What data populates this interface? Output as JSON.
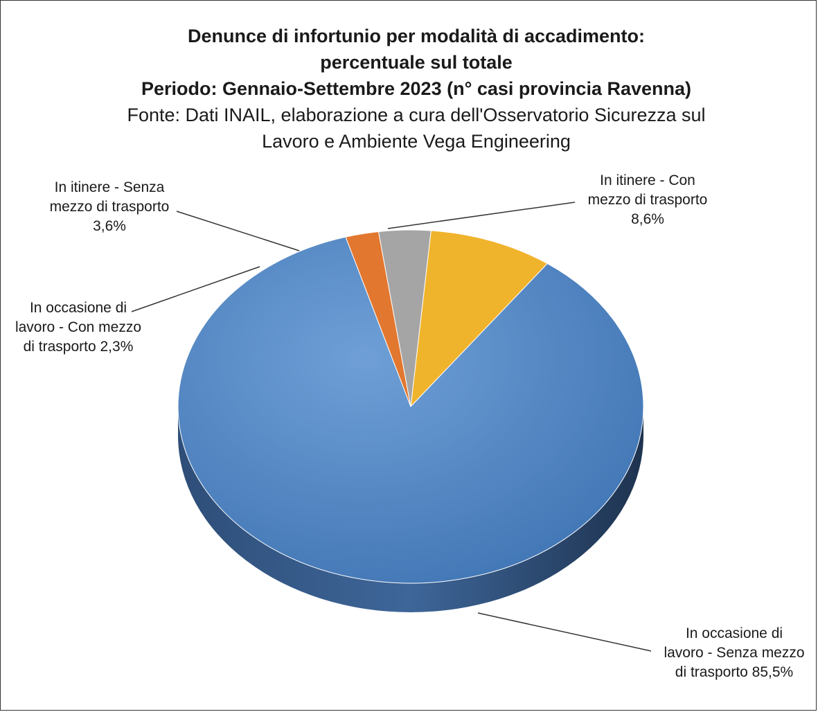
{
  "chart_data": {
    "type": "pie",
    "title_lines": [
      "Denunce di infortunio per modalità di accadimento:",
      "percentuale sul totale",
      "Periodo: Gennaio-Settembre 2023 (n° casi provincia Ravenna)"
    ],
    "subtitle_lines": [
      "Fonte: Dati INAIL, elaborazione a cura dell'Osservatorio Sicurezza sul",
      "Lavoro e Ambiente Vega Engineering"
    ],
    "slices": [
      {
        "name": "In itinere - Con mezzo di trasporto",
        "value": 8.6,
        "color": "#F0B32C",
        "label_lines": [
          "In itinere - Con",
          "mezzo di trasporto",
          "8,6%"
        ]
      },
      {
        "name": "In occasione di lavoro - Senza mezzo di trasporto",
        "value": 85.5,
        "color": "#5B8FC9",
        "label_lines": [
          "In occasione di",
          "lavoro - Senza mezzo",
          "di trasporto 85,5%"
        ]
      },
      {
        "name": "In occasione di lavoro - Con mezzo di trasporto",
        "value": 2.3,
        "color": "#E2772F",
        "label_lines": [
          "In occasione di",
          "lavoro - Con mezzo",
          "di trasporto 2,3%"
        ]
      },
      {
        "name": "In itinere - Senza mezzo di trasporto",
        "value": 3.6,
        "color": "#A5A5A5",
        "label_lines": [
          "In itinere - Senza",
          "mezzo di trasporto",
          "3,6%"
        ]
      }
    ],
    "legend": "none",
    "style": "3d"
  }
}
